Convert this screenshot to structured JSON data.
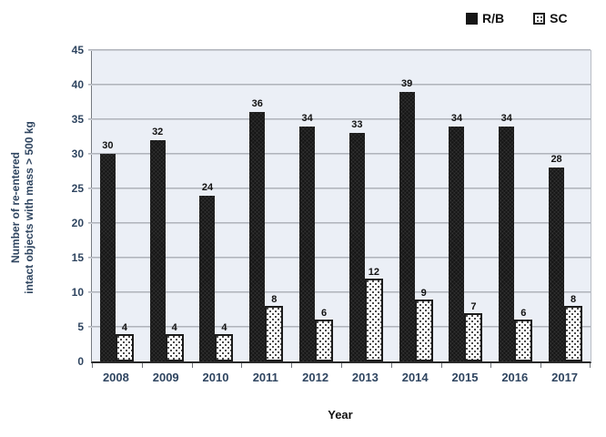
{
  "figure": {
    "y_axis_title_line1": "Number of re-entered",
    "y_axis_title_line2": "intact objects with mass > 500 kg",
    "x_axis_title": "Year"
  },
  "legend": {
    "position": "top-right",
    "items": [
      {
        "label": "R/B",
        "swatch": "solid-black-square"
      },
      {
        "label": "SC",
        "swatch": "dotted-white-square"
      }
    ]
  },
  "chart_data": {
    "type": "bar",
    "title": "",
    "xlabel": "Year",
    "ylabel": "Number of re-entered intact objects with mass > 500 kg",
    "categories": [
      "2008",
      "2009",
      "2010",
      "2011",
      "2012",
      "2013",
      "2014",
      "2015",
      "2016",
      "2017"
    ],
    "series": [
      {
        "name": "R/B",
        "style": "solid",
        "values": [
          30,
          32,
          24,
          36,
          34,
          33,
          39,
          34,
          34,
          28
        ]
      },
      {
        "name": "SC",
        "style": "dotted",
        "values": [
          4,
          4,
          4,
          8,
          6,
          12,
          9,
          7,
          6,
          8
        ]
      }
    ],
    "ylim": [
      0,
      45
    ],
    "ytick_step": 5,
    "grid": true,
    "data_labels": true,
    "legend_position": "top-right",
    "colors": {
      "rb_bar": "#161616",
      "sc_bar_fill": "#ffffff",
      "sc_bar_dots": "#111111",
      "axis_text_navy": "#2f4560",
      "plot_background": "#ebeff6",
      "gridline": "#a3a7af",
      "data_label": "#111111"
    }
  }
}
